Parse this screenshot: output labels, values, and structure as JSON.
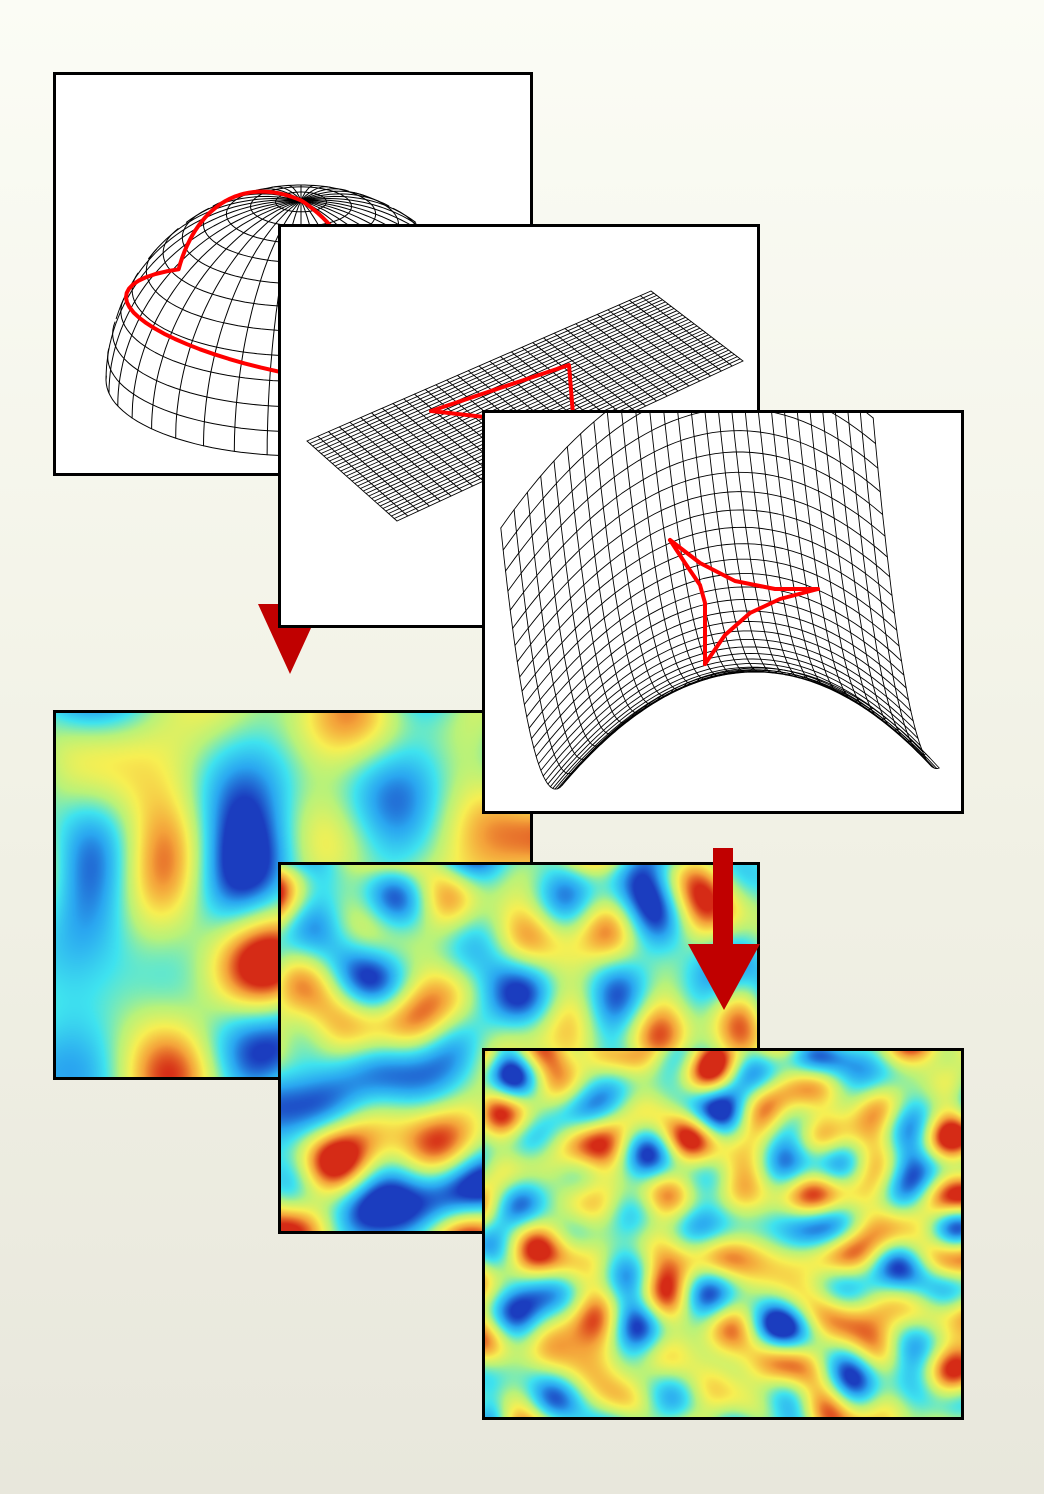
{
  "diagram": {
    "surfaces": [
      {
        "name": "sphere",
        "curvature": "positive",
        "mesh_color": "#000000",
        "triangle_color": "#ff0000"
      },
      {
        "name": "plane",
        "curvature": "flat",
        "mesh_color": "#000000",
        "triangle_color": "#ff0000"
      },
      {
        "name": "saddle",
        "curvature": "negative",
        "mesh_color": "#000000",
        "triangle_color": "#ff0000"
      }
    ],
    "cmb_maps": [
      {
        "name": "map-large-spots",
        "feature_scale": "large"
      },
      {
        "name": "map-medium-spots",
        "feature_scale": "medium"
      },
      {
        "name": "map-small-spots",
        "feature_scale": "small"
      }
    ],
    "arrow_color": "#c00000",
    "map_colorscale": [
      "#1b3dbf",
      "#2aa6f0",
      "#3fe3ef",
      "#b8f27a",
      "#f7ef52",
      "#f4a23a",
      "#d52b16"
    ]
  }
}
